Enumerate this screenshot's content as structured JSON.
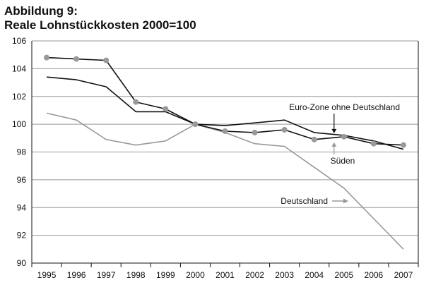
{
  "chart_data": {
    "type": "line",
    "title": "Abbildung 9:",
    "subtitle": "Reale Lohnstückkosten 2000=100",
    "categories": [
      "1995",
      "1996",
      "1997",
      "1998",
      "1999",
      "2000",
      "2001",
      "2002",
      "2003",
      "2004",
      "2005",
      "2006",
      "2007"
    ],
    "ylim": [
      90,
      106
    ],
    "yticks": [
      90,
      92,
      94,
      96,
      98,
      100,
      102,
      104,
      106
    ],
    "grid": true,
    "series": [
      {
        "name": "Euro-Zone ohne Deutschland",
        "color": "#111111",
        "marker": false,
        "values": [
          103.4,
          103.2,
          102.7,
          100.9,
          100.9,
          100.0,
          99.9,
          100.1,
          100.3,
          99.4,
          99.2,
          98.8,
          98.2
        ]
      },
      {
        "name": "Süden",
        "color": "#111111",
        "marker": true,
        "marker_color": "#999999",
        "values": [
          104.8,
          104.7,
          104.6,
          101.6,
          101.1,
          100.0,
          99.5,
          99.4,
          99.6,
          98.9,
          99.1,
          98.6,
          98.5
        ]
      },
      {
        "name": "Deutschland",
        "color": "#999999",
        "marker": false,
        "values": [
          100.8,
          100.3,
          98.9,
          98.5,
          98.8,
          100.0,
          99.4,
          98.6,
          98.4,
          96.9,
          95.4,
          93.2,
          91.0
        ]
      }
    ],
    "annotations": [
      {
        "text": "Euro-Zone ohne Deutschland",
        "series": 0
      },
      {
        "text": "Süden",
        "series": 1
      },
      {
        "text": "Deutschland",
        "series": 2
      }
    ]
  }
}
